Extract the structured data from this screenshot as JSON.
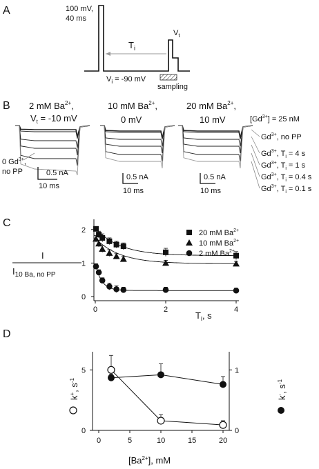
{
  "panels": {
    "a": {
      "letter": "A",
      "pp_label_1": "100 mV,",
      "pp_label_2": "40 ms",
      "ti_label": "T",
      "ti_sub": "i",
      "vt_label": "V",
      "vt_sub": "t",
      "vi_label": "V",
      "vi_sub": "i",
      "vi_value": " = -90 mV",
      "sampling_label": "sampling"
    },
    "b": {
      "letter": "B",
      "titles": [
        "2 mM Ba",
        "10 mM Ba",
        "20 mM Ba"
      ],
      "title_sup": "2+",
      "title_comma": ",",
      "voltages": [
        "V",
        "0 mV",
        "10 mV"
      ],
      "voltage1_sub": "t",
      "voltage1_value": " = -10 mV",
      "gd_conc": "[Gd",
      "gd_conc_sup": "3+",
      "gd_conc_tail": "] = 25 nM",
      "left_label_1": "0 Gd",
      "left_label_1_sup": "3+",
      "left_label_1_tail": ",",
      "left_label_2": "no PP",
      "right_labels": [
        {
          "pre": "Gd",
          "sup": "3+",
          "post": ", no PP"
        },
        {
          "pre": "Gd",
          "sup": "3+",
          "post": ", T",
          "sub": "i",
          "tail": " = 4 s"
        },
        {
          "pre": "Gd",
          "sup": "3+",
          "post": ", T",
          "sub": "i",
          "tail": " = 1 s"
        },
        {
          "pre": "Gd",
          "sup": "3+",
          "post": ", T",
          "sub": "i",
          "tail": " = 0.4 s"
        },
        {
          "pre": "Gd",
          "sup": "3+",
          "post": ", T",
          "sub": "i",
          "tail": " = 0.1 s"
        }
      ],
      "scale_current": "0.5 nA",
      "scale_time": "10 ms"
    },
    "c": {
      "letter": "C",
      "ylabel_num": "I",
      "ylabel_den": "I",
      "ylabel_den_sub": "10 Ba, no PP",
      "xlabel": "T",
      "xlabel_sub": "i",
      "xlabel_unit": ", s",
      "legend": [
        {
          "pre": "20 mM Ba",
          "sup": "2+",
          "marker": "square"
        },
        {
          "pre": "10 mM Ba",
          "sup": "2+",
          "marker": "triangle"
        },
        {
          "pre": "2 mM Ba",
          "sup": "2+",
          "marker": "circle"
        }
      ]
    },
    "d": {
      "letter": "D",
      "ylabel_left": "k",
      "ylabel_left_sup": "+",
      "ylabel_left_unit": ", s",
      "ylabel_left_unit_sup": "-1",
      "ylabel_right": "k",
      "ylabel_right_sup": "-",
      "ylabel_right_unit": ", s",
      "ylabel_right_unit_sup": "-1",
      "xlabel": "[Ba",
      "xlabel_sup": "2+",
      "xlabel_tail": "], mM"
    }
  },
  "chart_data": [
    {
      "panel": "C",
      "type": "scatter",
      "xlabel": "Ti, s",
      "ylabel": "I / I10 Ba, no PP",
      "xlim": [
        0,
        4
      ],
      "ylim": [
        0,
        2
      ],
      "xticks": [
        0,
        2,
        4
      ],
      "yticks": [
        0,
        1,
        2
      ],
      "series": [
        {
          "name": "20 mM Ba2+",
          "marker": "square",
          "x": [
            0.02,
            0.1,
            0.2,
            0.4,
            0.6,
            0.8,
            2,
            4
          ],
          "y": [
            2.02,
            1.85,
            1.75,
            1.65,
            1.55,
            1.5,
            1.32,
            1.22
          ],
          "err": [
            0.07,
            0.1,
            0.12,
            0.1,
            0.1,
            0.1,
            0.12,
            0.12
          ]
        },
        {
          "name": "10 mM Ba2+",
          "marker": "triangle",
          "x": [
            0.02,
            0.1,
            0.2,
            0.4,
            0.6,
            0.8,
            2,
            4
          ],
          "y": [
            1.72,
            1.58,
            1.42,
            1.3,
            1.2,
            1.12,
            1.0,
            0.98
          ],
          "err": [
            0.1,
            0.1,
            0.1,
            0.1,
            0.08,
            0.08,
            0.08,
            0.07
          ]
        },
        {
          "name": "2 mM Ba2+",
          "marker": "circle",
          "x": [
            0.02,
            0.1,
            0.2,
            0.4,
            0.6,
            0.8,
            2,
            4
          ],
          "y": [
            0.9,
            0.72,
            0.48,
            0.3,
            0.22,
            0.2,
            0.2,
            0.18
          ],
          "err": [
            0.08,
            0.08,
            0.08,
            0.1,
            0.1,
            0.08,
            0.08,
            0.07
          ]
        }
      ]
    },
    {
      "panel": "D",
      "type": "line",
      "xlabel": "[Ba2+], mM",
      "ylabel_left": "k+, s-1",
      "ylabel_right": "k-, s-1",
      "xlim": [
        -1,
        21
      ],
      "xticks": [
        0,
        5,
        10,
        15,
        20
      ],
      "left_ylim": [
        0,
        6.5
      ],
      "left_yticks": [
        0,
        5
      ],
      "right_ylim": [
        0,
        1.3
      ],
      "right_yticks": [
        0,
        1
      ],
      "series": [
        {
          "name": "k+",
          "axis": "left",
          "marker": "open-circle",
          "x": [
            2,
            10,
            20
          ],
          "y": [
            5.0,
            0.8,
            0.45
          ],
          "err": [
            1.2,
            0.5,
            0.35
          ]
        },
        {
          "name": "k-",
          "axis": "right",
          "marker": "filled-circle",
          "x": [
            2,
            10,
            20
          ],
          "y": [
            0.87,
            0.92,
            0.76
          ],
          "err": [
            0.06,
            0.18,
            0.13
          ]
        }
      ]
    }
  ]
}
